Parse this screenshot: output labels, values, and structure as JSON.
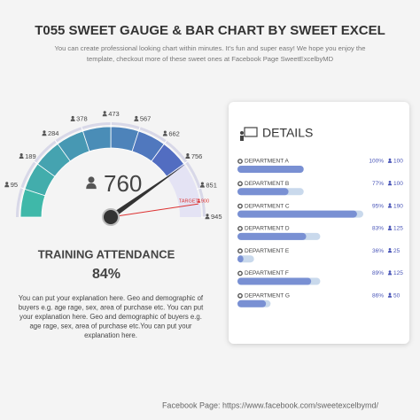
{
  "header": {
    "title": "T055 SWEET GAUGE & BAR CHART BY SWEET EXCEL",
    "subtitle_lines": [
      "You can create professional looking chart within minutes. It's fun and super easy! We hope you enjoy the",
      "template, checkout more of these sweet ones at Facebook Page SweetExcelbyMD"
    ]
  },
  "gauge": {
    "range": [
      0,
      945
    ],
    "ticks": [
      95,
      189,
      284,
      378,
      473,
      567,
      662,
      756,
      851,
      945
    ],
    "value": 760,
    "target": {
      "label": "TARGET",
      "value": 900
    }
  },
  "metric": {
    "title": "TRAINING ATTENDANCE",
    "percent": 84,
    "percent_label": "84%",
    "explanation_lines": [
      "You can put your explanation here. Geo and demographic of",
      "buyers e.g. age rage, sex, area of purchase etc. You can put",
      "your explanation here. Geo and demographic of buyers e.g.",
      "age rage, sex, area of purchase etc.You can put your",
      "explanation here."
    ]
  },
  "details": {
    "title": "DETAILS",
    "count_max": 190,
    "rows": [
      {
        "name": "DEPARTMENT A",
        "percent": 100,
        "percent_label": "100%",
        "count": 100
      },
      {
        "name": "DEPARTMENT B",
        "percent": 77,
        "percent_label": "77%",
        "count": 100
      },
      {
        "name": "DEPARTMENT C",
        "percent": 95,
        "percent_label": "95%",
        "count": 190
      },
      {
        "name": "DEPARTMENT D",
        "percent": 83,
        "percent_label": "83%",
        "count": 125
      },
      {
        "name": "DEPARTMENT E",
        "percent": 36,
        "percent_label": "36%",
        "count": 25
      },
      {
        "name": "DEPARTMENT F",
        "percent": 89,
        "percent_label": "89%",
        "count": 125
      },
      {
        "name": "DEPARTMENT G",
        "percent": 86,
        "percent_label": "86%",
        "count": 50
      }
    ]
  },
  "footer": "Facebook Page: https://www.facebook.com/sweetexcelbymd/"
}
